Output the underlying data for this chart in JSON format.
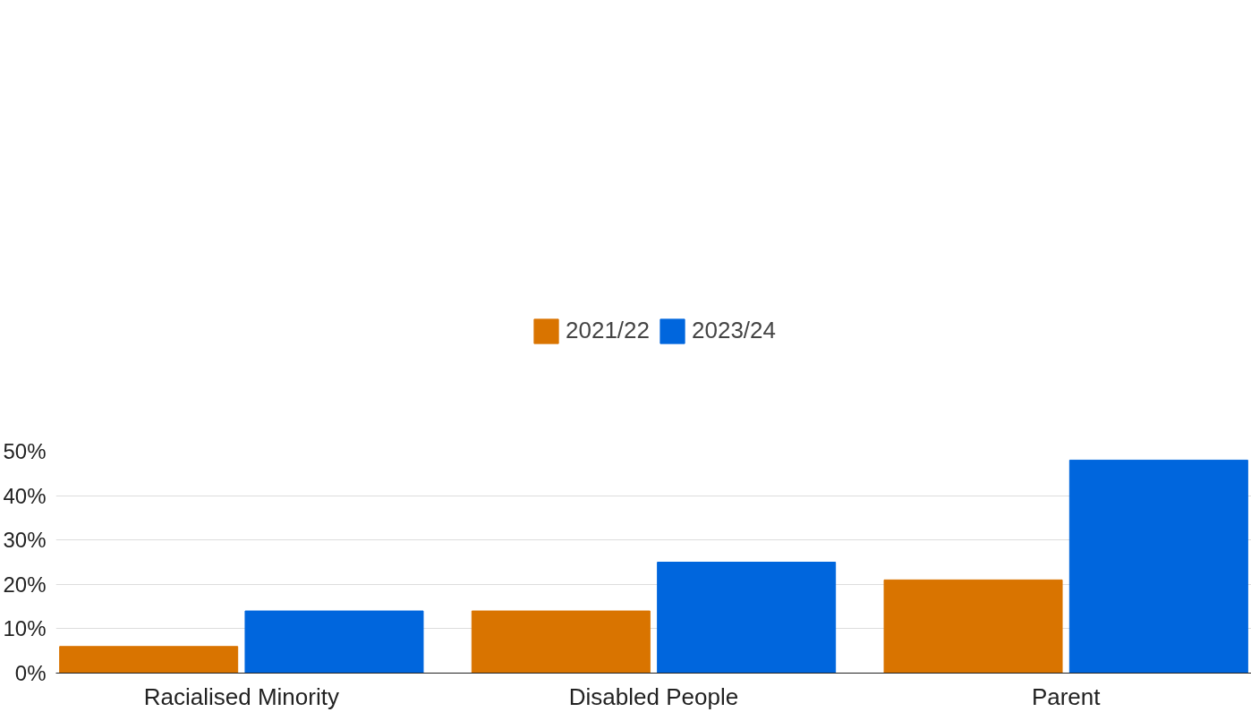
{
  "chart_data": {
    "type": "bar",
    "categories": [
      "Racialised Minority",
      "Disabled People",
      "Parent"
    ],
    "series": [
      {
        "name": "2021/22",
        "color": "#d97400",
        "values": [
          6,
          14,
          21
        ]
      },
      {
        "name": "2023/24",
        "color": "#0066dd",
        "values": [
          14,
          25,
          48
        ]
      }
    ],
    "ylim": [
      0,
      50
    ],
    "yticks": [
      {
        "value": 0,
        "label": "0%"
      },
      {
        "value": 10,
        "label": "10%"
      },
      {
        "value": 20,
        "label": "20%"
      },
      {
        "value": 30,
        "label": "30%"
      },
      {
        "value": 40,
        "label": "40%"
      },
      {
        "value": 50,
        "label": "50%"
      }
    ],
    "grid": "y",
    "legend": "top"
  }
}
